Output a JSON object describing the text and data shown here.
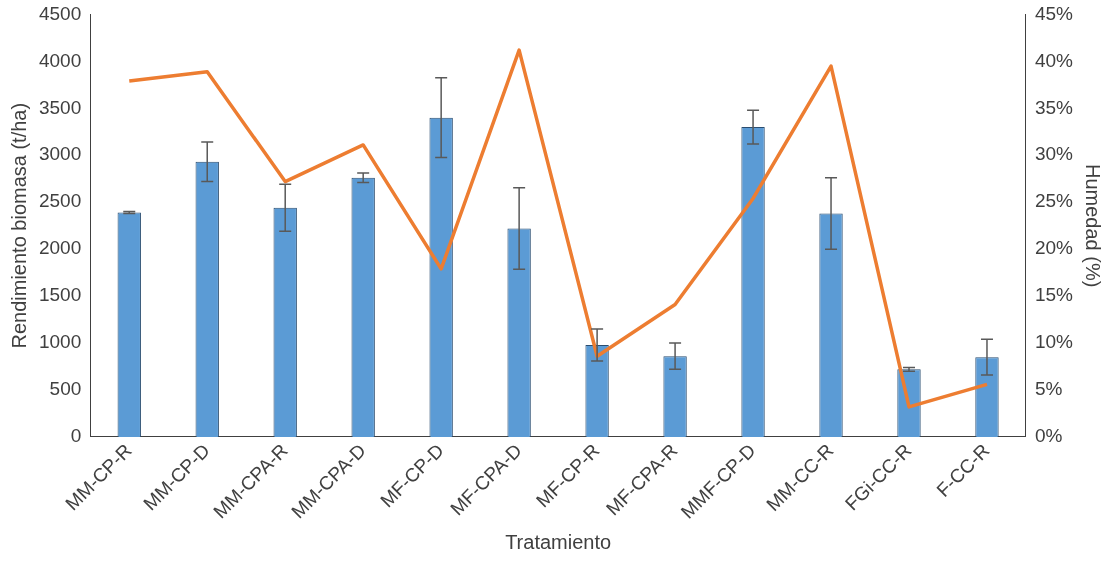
{
  "chart_data": {
    "type": "bar",
    "xlabel": "Tratamiento",
    "ylabel": "Rendimiento biomasa (t/ha)",
    "y2label": "Humedad (%)",
    "categories": [
      "MM-CP-R",
      "MM-CP-D",
      "MM-CPA-R",
      "MM-CPA-D",
      "MF-CP-D",
      "MF-CPA-D",
      "MF-CP-R",
      "MF-CPA-R",
      "MMF-CP-D",
      "MM-CC-R",
      "FGi-CC-R",
      "F-CC-R"
    ],
    "series": [
      {
        "color": "#5b9bd5",
        "values": [
          2390,
          2930,
          2440,
          2760,
          3400,
          2220,
          980,
          860,
          3300,
          2380,
          720,
          850
        ],
        "errors": [
          10,
          210,
          250,
          50,
          425,
          435,
          170,
          140,
          180,
          380,
          20,
          190
        ]
      },
      {
        "type": "line",
        "axis": "y2",
        "color": "#ed7d31",
        "values": [
          37.9,
          38.9,
          27.2,
          31.1,
          17.9,
          41.2,
          8.6,
          14.1,
          25.4,
          39.5,
          3.2,
          5.6
        ]
      }
    ],
    "ylim": [
      0,
      4500
    ],
    "yticks": [
      0,
      500,
      1000,
      1500,
      2000,
      2500,
      3000,
      3500,
      4000,
      4500
    ],
    "y2lim": [
      0,
      45
    ],
    "y2ticks": [
      {
        "value": 0,
        "label": "0%"
      },
      {
        "value": 5,
        "label": "5%"
      },
      {
        "value": 10,
        "label": "10%"
      },
      {
        "value": 15,
        "label": "15%"
      },
      {
        "value": 20,
        "label": "20%"
      },
      {
        "value": 25,
        "label": "25%"
      },
      {
        "value": 30,
        "label": "30%"
      },
      {
        "value": 35,
        "label": "35%"
      },
      {
        "value": 40,
        "label": "40%"
      },
      {
        "value": 45,
        "label": "45%"
      }
    ],
    "grid": false,
    "legend": false,
    "marker": "none",
    "line_style": "solid"
  }
}
